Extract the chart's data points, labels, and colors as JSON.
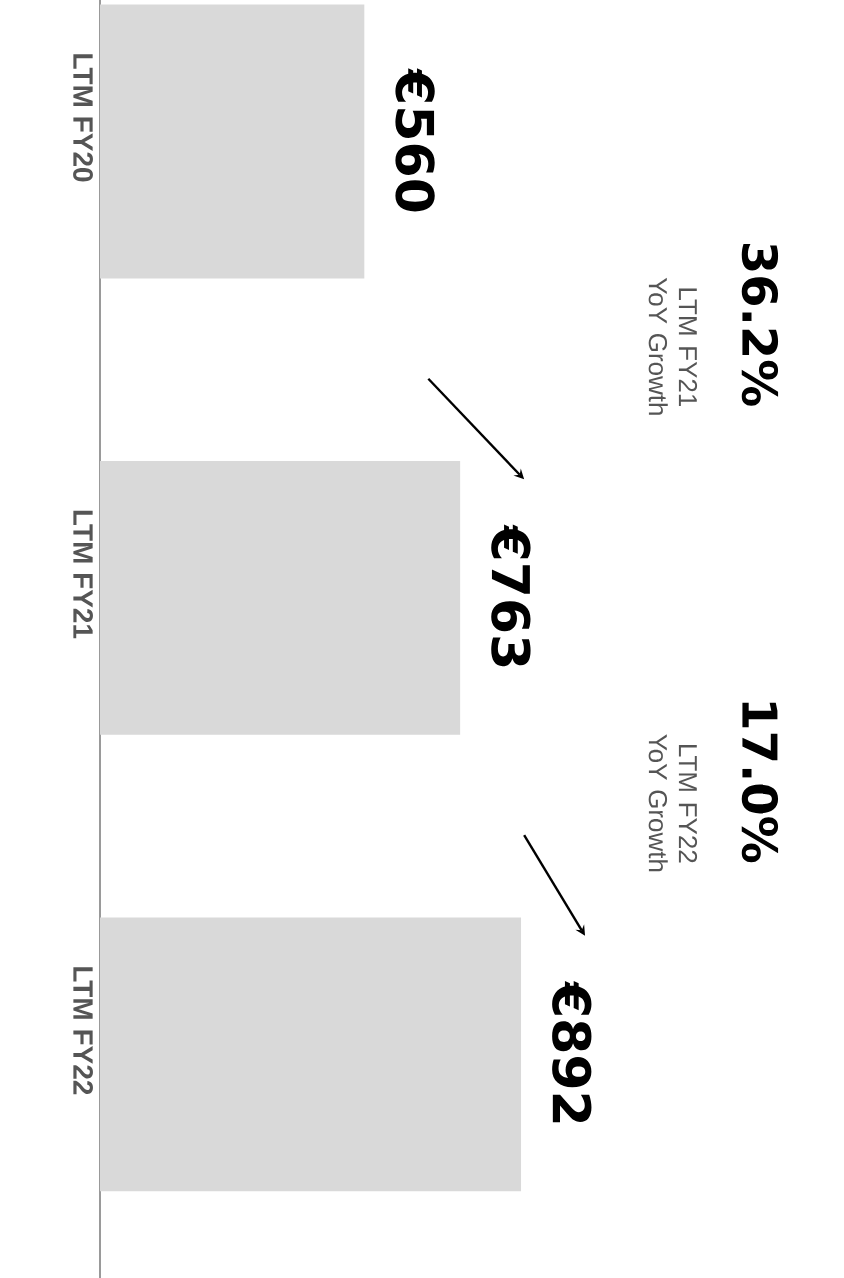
{
  "chart_data": {
    "type": "bar",
    "orientation": "horizontal",
    "categories": [
      "LTM FY20",
      "LTM FY21",
      "LTM FY22"
    ],
    "values": [
      560,
      763,
      892
    ],
    "value_labels": [
      "€560",
      "€763",
      "€892"
    ],
    "color": "#d9d9d9",
    "annotations": [
      "36.2%",
      "LTM FY21 YoY Growth",
      "17.0%",
      "LTM FY22 YoY Growth"
    ]
  }
}
